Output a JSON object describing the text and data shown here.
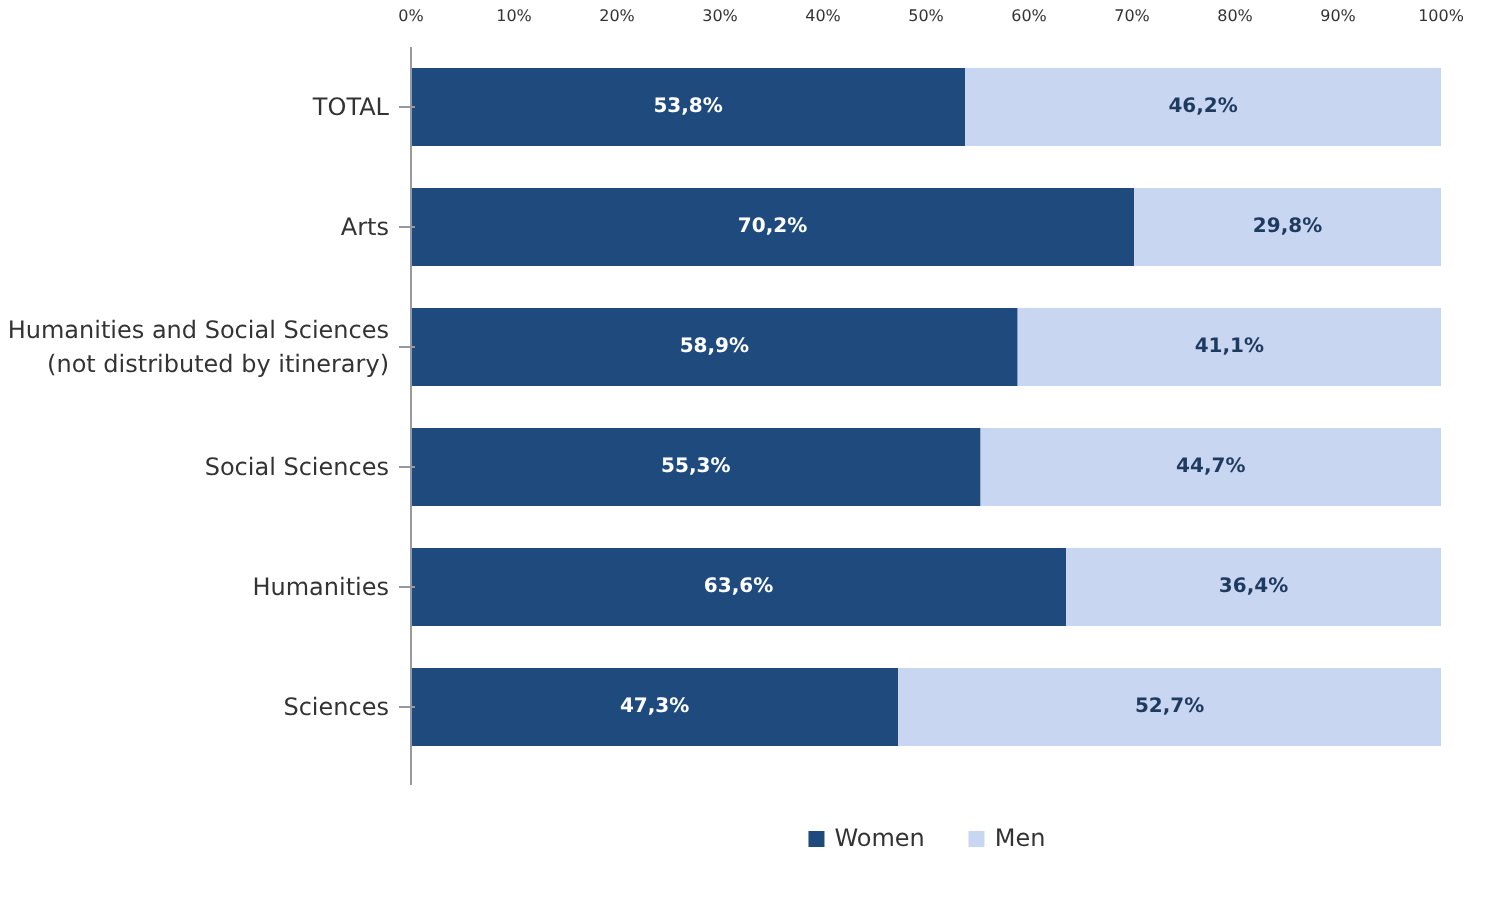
{
  "chart_data": {
    "type": "bar",
    "orientation": "horizontal",
    "stacked": true,
    "categories": [
      "TOTAL",
      "Arts",
      "Humanities and Social Sciences (not distributed by itinerary)",
      "Social Sciences",
      "Humanities",
      "Sciences"
    ],
    "series": [
      {
        "name": "Women",
        "color": "#1f4a7e",
        "values": [
          53.8,
          70.2,
          58.9,
          55.3,
          63.6,
          47.3
        ],
        "value_labels": [
          "53,8%",
          "70,2%",
          "58,9%",
          "55,3%",
          "63,6%",
          "47,3%"
        ]
      },
      {
        "name": "Men",
        "color": "#c9d6f2",
        "values": [
          46.2,
          29.8,
          41.1,
          44.7,
          36.4,
          52.7
        ],
        "value_labels": [
          "46,2%",
          "29,8%",
          "41,1%",
          "44,7%",
          "36,4%",
          "52,7%"
        ]
      }
    ],
    "xlim": [
      0,
      100
    ],
    "xticks": [
      {
        "value": 0,
        "label": "0%"
      },
      {
        "value": 10,
        "label": "10%"
      },
      {
        "value": 20,
        "label": "20%"
      },
      {
        "value": 30,
        "label": "30%"
      },
      {
        "value": 40,
        "label": "40%"
      },
      {
        "value": 50,
        "label": "50%"
      },
      {
        "value": 60,
        "label": "60%"
      },
      {
        "value": 70,
        "label": "70%"
      },
      {
        "value": 80,
        "label": "80%"
      },
      {
        "value": 90,
        "label": "90%"
      },
      {
        "value": 100,
        "label": "100%"
      }
    ],
    "grid": false,
    "legend": "bottom"
  }
}
